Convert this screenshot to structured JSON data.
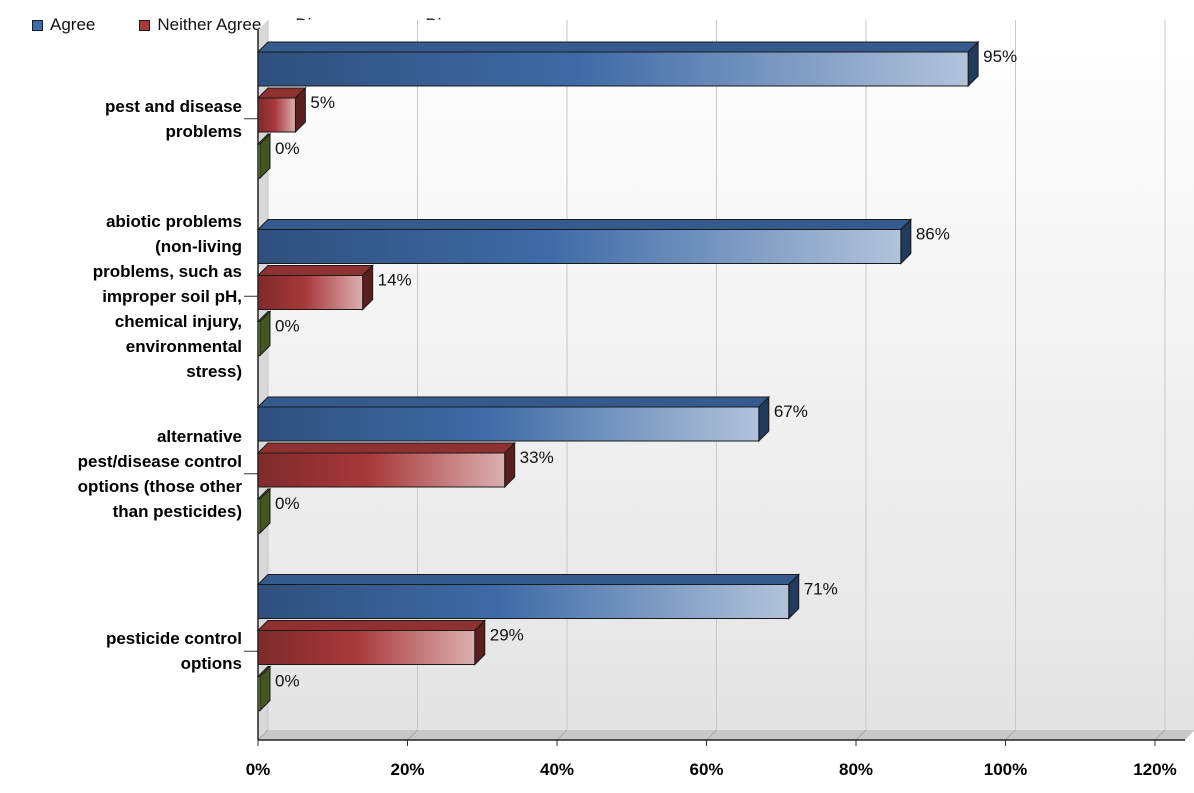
{
  "chart_data": {
    "type": "bar",
    "orientation": "horizontal",
    "style": "3d",
    "categories": [
      "pest and disease problems",
      "abiotic problems (non-living problems, such as improper soil pH, chemical injury, environmental stress)",
      "alternative pest/disease control options (those other than pesticides)",
      "pesticide control options"
    ],
    "category_lines": [
      [
        "pest and disease",
        "problems"
      ],
      [
        "abiotic problems",
        "(non-living",
        "problems, such as",
        "improper soil pH,",
        "chemical injury,",
        "environmental",
        "stress)"
      ],
      [
        "alternative",
        "pest/disease control",
        "options (those other",
        "than pesticides)"
      ],
      [
        "pesticide control",
        "options"
      ]
    ],
    "series": [
      {
        "name": "Agree",
        "values": [
          95,
          86,
          67,
          71
        ],
        "labels": [
          "95%",
          "86%",
          "67%",
          "71%"
        ],
        "color": "#3E6AA6"
      },
      {
        "name": "Neither Agree nor Disagree",
        "values": [
          5,
          14,
          33,
          29
        ],
        "labels": [
          "5%",
          "14%",
          "33%",
          "29%"
        ],
        "color": "#A8383A"
      },
      {
        "name": "Disagree",
        "values": [
          0,
          0,
          0,
          0
        ],
        "labels": [
          "0%",
          "0%",
          "0%",
          "0%"
        ],
        "color": "#7A9A3C"
      }
    ],
    "xlim": [
      0,
      120
    ],
    "x_ticks": [
      "0%",
      "20%",
      "40%",
      "60%",
      "80%",
      "100%",
      "120%"
    ],
    "grid": true,
    "legend_position": "top-left",
    "title": "",
    "xlabel": "",
    "ylabel": ""
  }
}
